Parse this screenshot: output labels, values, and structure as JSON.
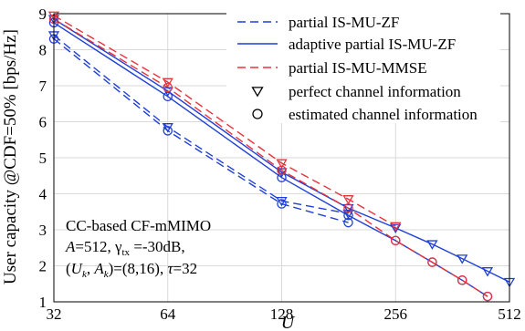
{
  "chart_data": {
    "type": "line",
    "xlabel": "U",
    "ylabel": "User capacity @CDF=50% [bps/Hz]",
    "x_scale": "log2",
    "xlim": [
      32,
      512
    ],
    "ylim": [
      1,
      9
    ],
    "x_ticks": [
      32,
      64,
      128,
      256,
      512
    ],
    "y_ticks": [
      1,
      2,
      3,
      4,
      5,
      6,
      7,
      8,
      9
    ],
    "grid": true,
    "legend_position": "top-right",
    "legend": [
      {
        "label": "partial IS-MU-ZF",
        "color": "#1f3fd6",
        "dash": "dashed",
        "marker": "none"
      },
      {
        "label": "adaptive partial IS-MU-ZF",
        "color": "#1f3fd6",
        "dash": "solid",
        "marker": "none"
      },
      {
        "label": "partial IS-MU-MMSE",
        "color": "#e8333a",
        "dash": "dashed",
        "marker": "none"
      },
      {
        "label": "perfect channel information",
        "color": "#000000",
        "dash": "none",
        "marker": "triangle-down"
      },
      {
        "label": "estimated channel information",
        "color": "#000000",
        "dash": "none",
        "marker": "circle"
      }
    ],
    "annotation": [
      "CC-based CF-mMIMO",
      "A=512, γ_tx=-30dB,",
      "(U_k, A_k)=(8,16), τ=32"
    ],
    "series": [
      {
        "group": "partial IS-MU-ZF",
        "channel": "perfect",
        "color": "#1f3fd6",
        "dash": "dashed",
        "marker": "triangle-down",
        "x": [
          32,
          64,
          128,
          192
        ],
        "y": [
          8.4,
          5.85,
          3.8,
          3.45
        ]
      },
      {
        "group": "partial IS-MU-ZF",
        "channel": "estimated",
        "color": "#1f3fd6",
        "dash": "dashed",
        "marker": "circle",
        "x": [
          32,
          64,
          128,
          192
        ],
        "y": [
          8.3,
          5.75,
          3.72,
          3.2
        ]
      },
      {
        "group": "adaptive partial IS-MU-ZF",
        "channel": "perfect",
        "color": "#1f3fd6",
        "dash": "solid",
        "marker": "triangle-down",
        "x": [
          32,
          64,
          128,
          192,
          256,
          320,
          384,
          448,
          512
        ],
        "y": [
          8.85,
          6.85,
          4.6,
          3.6,
          3.05,
          2.6,
          2.2,
          1.85,
          1.55
        ]
      },
      {
        "group": "adaptive partial IS-MU-ZF",
        "channel": "estimated",
        "color": "#1f3fd6",
        "dash": "solid",
        "marker": "circle",
        "x": [
          32,
          64,
          128,
          192,
          256,
          320,
          384,
          448
        ],
        "y": [
          8.75,
          6.7,
          4.45,
          3.4,
          2.7,
          2.1,
          1.6,
          1.15
        ]
      },
      {
        "group": "partial IS-MU-MMSE",
        "channel": "perfect",
        "color": "#e8333a",
        "dash": "dashed",
        "marker": "triangle-down",
        "x": [
          32,
          64,
          128,
          192,
          256
        ],
        "y": [
          8.95,
          7.1,
          4.85,
          3.85,
          3.1
        ]
      },
      {
        "group": "partial IS-MU-MMSE",
        "channel": "estimated",
        "color": "#e8333a",
        "dash": "dashed",
        "marker": "circle",
        "x": [
          32,
          64,
          128,
          192,
          256,
          320,
          384,
          448
        ],
        "y": [
          8.85,
          6.95,
          4.65,
          3.6,
          2.7,
          2.1,
          1.6,
          1.15
        ]
      }
    ]
  }
}
